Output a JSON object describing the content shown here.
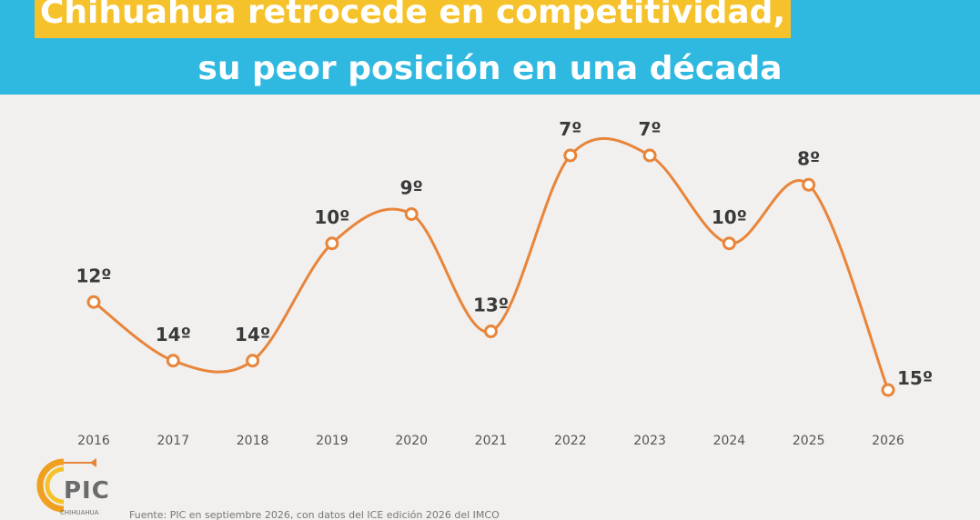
{
  "header": {
    "title_line1": "Chihuahua retrocede en competitividad,",
    "title_line2": "su peor posición en una década"
  },
  "chart_data": {
    "type": "line",
    "x": [
      "2016",
      "2017",
      "2018",
      "2019",
      "2020",
      "2021",
      "2022",
      "2023",
      "2024",
      "2025",
      "2026"
    ],
    "values": [
      12,
      14,
      14,
      10,
      9,
      13,
      7,
      7,
      10,
      8,
      15
    ],
    "labels": [
      "12º",
      "14º",
      "14º",
      "10º",
      "9º",
      "13º",
      "7º",
      "7º",
      "10º",
      "8º",
      "15º"
    ],
    "title": "Chihuahua retrocede en competitividad, su peor posición en una década",
    "y_inverted": true,
    "ylim": [
      6,
      15
    ],
    "grid": false,
    "line_color": "#e8853a"
  },
  "footer": {
    "logo_text": "PIC",
    "logo_sub": "CHIHUAHUA",
    "source": "Fuente: PIC en septiembre 2026, con datos del ICE edición 2026 del IMCO"
  }
}
